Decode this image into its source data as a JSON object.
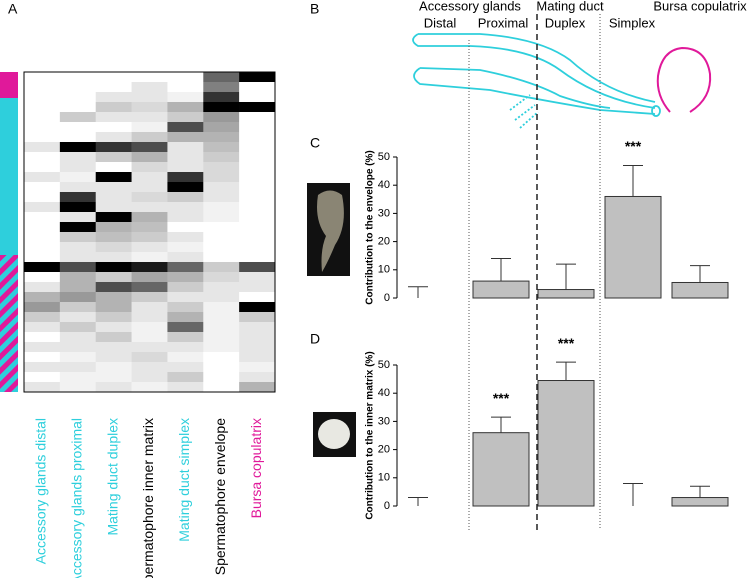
{
  "panel_labels": [
    "A",
    "B",
    "C",
    "D"
  ],
  "diagram": {
    "groups": [
      "Accessory glands",
      "Mating duct",
      "Bursa copulatrix"
    ],
    "sections": [
      "Distal",
      "Proximal",
      "Duplex",
      "Simplex"
    ]
  },
  "chart_data": [
    {
      "type": "heatmap",
      "columns": [
        "Accessory glands distal",
        "Accessory glands proximal",
        "Mating duct duplex",
        "Spermatophore inner matrix",
        "Mating duct simplex",
        "Spermatophore envelope",
        "Bursa copulatrix"
      ],
      "label_colors": [
        "#2ecfdc",
        "#2ecfdc",
        "#2ecfdc",
        "#000000",
        "#2ecfdc",
        "#000000",
        "#e0199a"
      ],
      "values": [
        [
          0,
          0,
          0,
          0,
          0,
          0.6,
          1
        ],
        [
          0,
          0,
          0,
          0.1,
          0,
          0.5,
          0
        ],
        [
          0,
          0,
          0.1,
          0.1,
          0.05,
          0.8,
          0
        ],
        [
          0,
          0,
          0.2,
          0.15,
          0.3,
          1,
          1
        ],
        [
          0,
          0.2,
          0.1,
          0.1,
          0.2,
          0.4,
          0
        ],
        [
          0,
          0,
          0,
          0.05,
          0.7,
          0.35,
          0
        ],
        [
          0,
          0,
          0.1,
          0.2,
          0.3,
          0.3,
          0
        ],
        [
          0.1,
          1,
          0.8,
          0.7,
          0.1,
          0.25,
          0
        ],
        [
          0,
          0.1,
          0.2,
          0.3,
          0.1,
          0.2,
          0
        ],
        [
          0,
          0.1,
          0,
          0.15,
          0.1,
          0.15,
          0
        ],
        [
          0.1,
          0.05,
          1,
          0.1,
          0.8,
          0.15,
          0
        ],
        [
          0,
          0.1,
          0.1,
          0.1,
          1,
          0.1,
          0
        ],
        [
          0,
          0.8,
          0.1,
          0.15,
          0.2,
          0.1,
          0
        ],
        [
          0.1,
          1,
          0.1,
          0.1,
          0.1,
          0.05,
          0
        ],
        [
          0,
          0.1,
          1,
          0.3,
          0.1,
          0.05,
          0
        ],
        [
          0,
          1,
          0.3,
          0.25,
          0,
          0,
          0
        ],
        [
          0,
          0.2,
          0.25,
          0.2,
          0.1,
          0,
          0
        ],
        [
          0,
          0.1,
          0.15,
          0.1,
          0.05,
          0,
          0
        ],
        [
          0,
          0.1,
          0.1,
          0.05,
          0.1,
          0,
          0
        ],
        [
          1,
          0.7,
          1,
          0.9,
          0.6,
          0.2,
          0.7
        ],
        [
          0,
          0.3,
          0.2,
          0.35,
          0.3,
          0.15,
          0.1
        ],
        [
          0.1,
          0.3,
          0.7,
          0.6,
          0.2,
          0.1,
          0.1
        ],
        [
          0.3,
          0.4,
          0.3,
          0.2,
          0.1,
          0.1,
          0
        ],
        [
          0.4,
          0.2,
          0.3,
          0.1,
          0.2,
          0.05,
          1
        ],
        [
          0.2,
          0.1,
          0.2,
          0.1,
          0.3,
          0.05,
          0.2
        ],
        [
          0.1,
          0.2,
          0.1,
          0.05,
          0.6,
          0.05,
          0.1
        ],
        [
          0,
          0.1,
          0.2,
          0.05,
          0.2,
          0.05,
          0.1
        ],
        [
          0.1,
          0.1,
          0.1,
          0.1,
          0.1,
          0.05,
          0.1
        ],
        [
          0,
          0.05,
          0.1,
          0.15,
          0.05,
          0,
          0.1
        ],
        [
          0.1,
          0.1,
          0.05,
          0.1,
          0.1,
          0,
          0.05
        ],
        [
          0,
          0.05,
          0.05,
          0.1,
          0.2,
          0,
          0.1
        ],
        [
          0.1,
          0.05,
          0.1,
          0.05,
          0.1,
          0,
          0.3
        ]
      ]
    },
    {
      "type": "bar",
      "ylabel": "Contribution to the envelope (%)",
      "categories": [
        "Distal",
        "Proximal",
        "Duplex",
        "Simplex",
        "Bursa copulatrix"
      ],
      "values": [
        0,
        6,
        3,
        36,
        5.5
      ],
      "errors": [
        4,
        8,
        9,
        11,
        6
      ],
      "significance": [
        null,
        null,
        null,
        "***",
        null
      ],
      "color": "#c0c0c0",
      "ylim": [
        0,
        50
      ],
      "yticks": [
        0,
        10,
        20,
        30,
        40,
        50
      ]
    },
    {
      "type": "bar",
      "ylabel": "Contribution to the inner matrix (%)",
      "categories": [
        "Distal",
        "Proximal",
        "Duplex",
        "Simplex",
        "Bursa copulatrix"
      ],
      "values": [
        0,
        26,
        44.5,
        0,
        3
      ],
      "errors": [
        3,
        5.5,
        6.5,
        8,
        4
      ],
      "significance": [
        null,
        "***",
        "***",
        null,
        null
      ],
      "color": "#c0c0c0",
      "ylim": [
        0,
        50
      ],
      "yticks": [
        0,
        10,
        20,
        30,
        40,
        50
      ]
    }
  ]
}
